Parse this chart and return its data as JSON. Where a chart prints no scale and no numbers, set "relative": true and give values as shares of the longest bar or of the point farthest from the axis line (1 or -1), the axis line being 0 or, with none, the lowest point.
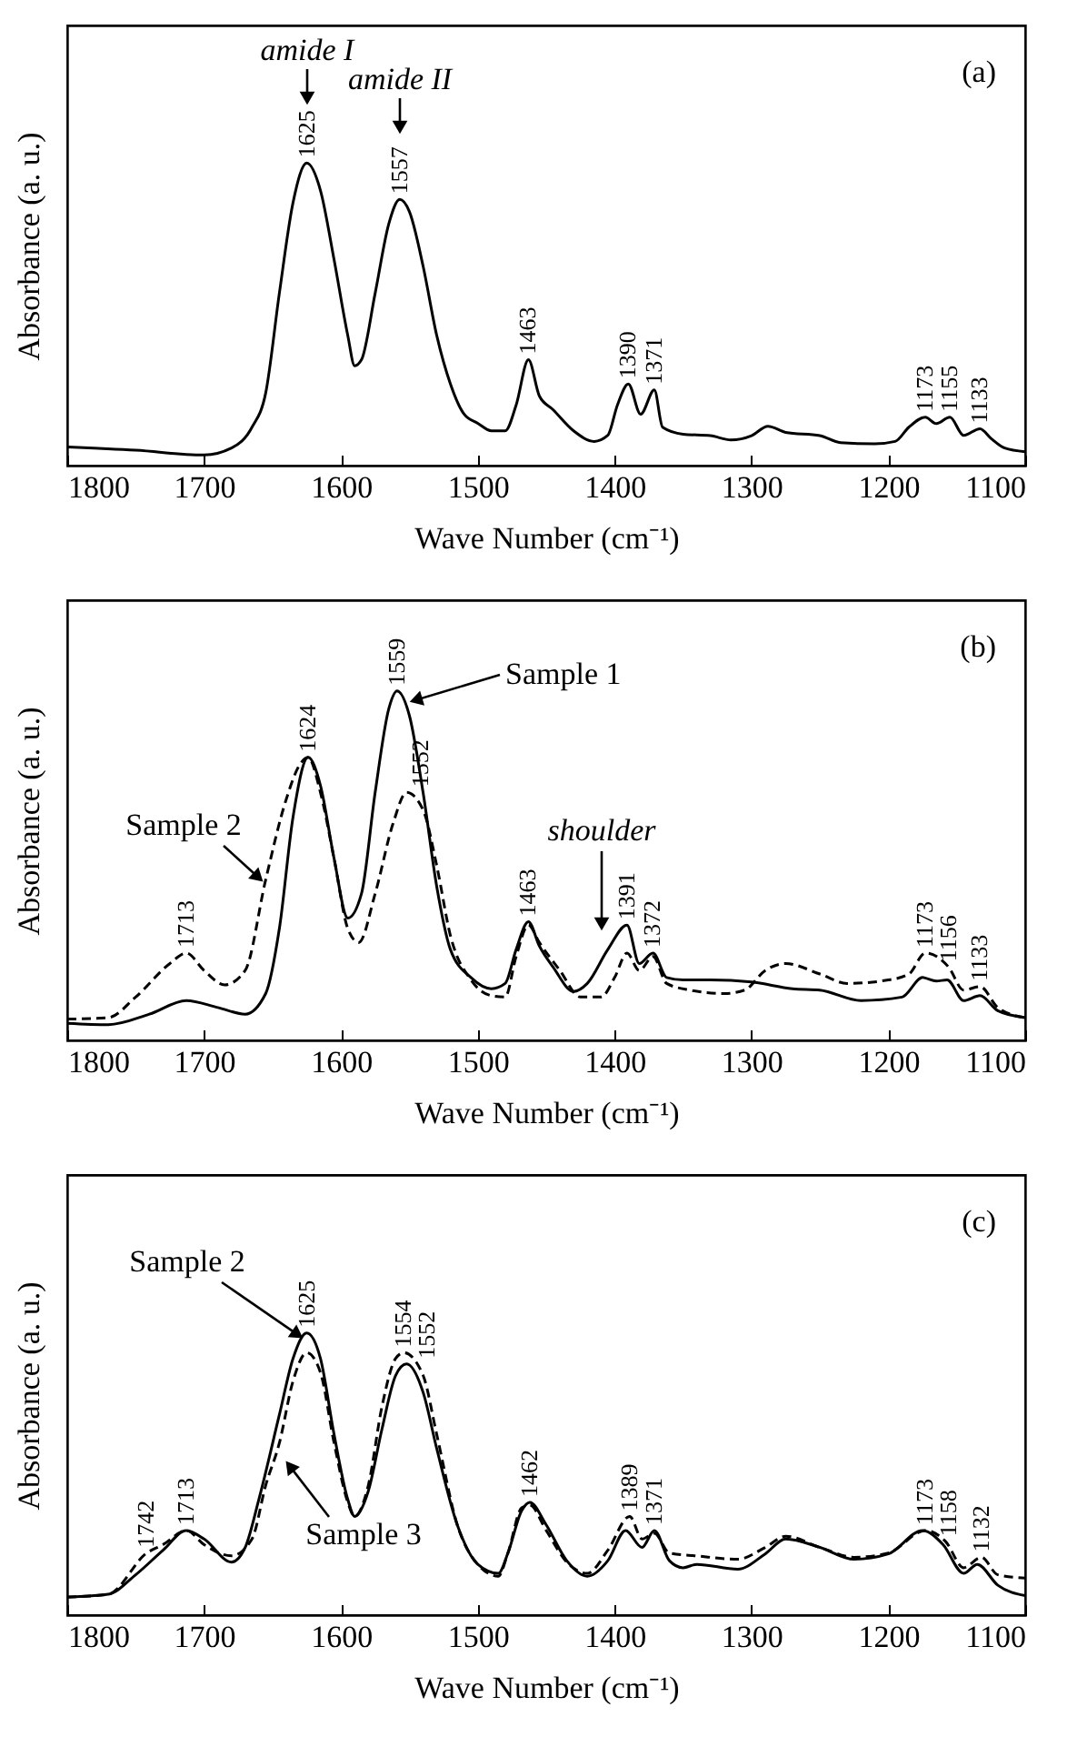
{
  "chart_data": [
    {
      "type": "line",
      "relative": true,
      "xlabel": "Wave Number (cm⁻¹)",
      "ylabel": "Absorbance (a. u.)",
      "xlim": [
        1800,
        1100
      ],
      "xticks": [
        1800,
        1700,
        1600,
        1500,
        1400,
        1300,
        1200,
        1100
      ],
      "annotations": [
        "(a)",
        "amide I",
        "amide II",
        {
          "text": "1625",
          "x": 1625,
          "y": 1
        },
        {
          "text": "1557",
          "x": 1557,
          "y": 0.88
        },
        {
          "text": "1463",
          "x": 1463,
          "y": 0.35
        },
        {
          "text": "1390",
          "x": 1390,
          "y": 0.27
        },
        {
          "text": "1371",
          "x": 1371,
          "y": 0.25
        },
        {
          "text": "1173",
          "x": 1173,
          "y": 0.16
        },
        {
          "text": "1155",
          "x": 1155,
          "y": 0.16
        },
        {
          "text": "1133",
          "x": 1133,
          "y": 0.122
        }
      ],
      "series": [
        {
          "color": "#000000",
          "line_style": "solid",
          "x": [
            1800,
            1750,
            1700,
            1680,
            1665,
            1655,
            1645,
            1635,
            1625,
            1615,
            1605,
            1595,
            1590,
            1585,
            1575,
            1565,
            1557,
            1550,
            1540,
            1530,
            1520,
            1510,
            1500,
            1490,
            1480,
            1472,
            1463,
            1455,
            1445,
            1430,
            1415,
            1405,
            1398,
            1390,
            1381,
            1371,
            1365,
            1350,
            1330,
            1315,
            1300,
            1288,
            1275,
            1250,
            1235,
            1210,
            1195,
            1185,
            1173,
            1165,
            1155,
            1145,
            1133,
            1125,
            1115,
            1100
          ],
          "values": [
            0.062,
            0.051,
            0.035,
            0.058,
            0.127,
            0.24,
            0.57,
            0.87,
            1,
            0.91,
            0.68,
            0.43,
            0.33,
            0.35,
            0.57,
            0.8,
            0.88,
            0.84,
            0.66,
            0.43,
            0.27,
            0.17,
            0.14,
            0.115,
            0.115,
            0.2,
            0.35,
            0.23,
            0.185,
            0.115,
            0.08,
            0.1,
            0.2,
            0.27,
            0.17,
            0.25,
            0.127,
            0.104,
            0.099,
            0.085,
            0.099,
            0.13,
            0.11,
            0.099,
            0.076,
            0.072,
            0.08,
            0.127,
            0.16,
            0.139,
            0.16,
            0.1,
            0.122,
            0.09,
            0.058,
            0.046
          ]
        }
      ]
    },
    {
      "type": "line",
      "relative": true,
      "xlabel": "Wave Number (cm⁻¹)",
      "ylabel": "Absorbance (a. u.)",
      "xlim": [
        1800,
        1100
      ],
      "xticks": [
        1800,
        1700,
        1600,
        1500,
        1400,
        1300,
        1200,
        1100
      ],
      "annotations": [
        "(b)",
        "Sample 1",
        "Sample 2",
        "shoulder",
        {
          "text": "1713",
          "x": 1713,
          "y": 0.25
        },
        {
          "text": "1624",
          "x": 1624,
          "y": 0.81
        },
        {
          "text": "1559",
          "x": 1559,
          "y": 1
        },
        {
          "text": "1552",
          "x": 1552,
          "y": 0.71
        },
        {
          "text": "1463",
          "x": 1463,
          "y": 0.34
        },
        {
          "text": "1391",
          "x": 1391,
          "y": 0.33
        },
        {
          "text": "1372",
          "x": 1372,
          "y": 0.25
        },
        {
          "text": "1173",
          "x": 1173,
          "y": 0.25
        },
        {
          "text": "1156",
          "x": 1156,
          "y": 0.21
        },
        {
          "text": "1133",
          "x": 1133,
          "y": 0.154
        }
      ],
      "series": [
        {
          "color": "#000000",
          "line_style": "solid",
          "x": [
            1800,
            1770,
            1740,
            1713,
            1690,
            1670,
            1655,
            1645,
            1635,
            1624,
            1615,
            1605,
            1595,
            1585,
            1575,
            1565,
            1559,
            1550,
            1540,
            1530,
            1520,
            1505,
            1490,
            1480,
            1472,
            1463,
            1455,
            1445,
            1430,
            1420,
            1405,
            1391,
            1382,
            1372,
            1362,
            1350,
            1330,
            1300,
            1270,
            1250,
            1220,
            1190,
            1175,
            1165,
            1157,
            1145,
            1133,
            1120,
            1100
          ],
          "values": [
            0.049,
            0.045,
            0.075,
            0.114,
            0.094,
            0.075,
            0.134,
            0.32,
            0.64,
            0.81,
            0.73,
            0.52,
            0.35,
            0.42,
            0.71,
            0.95,
            1,
            0.93,
            0.71,
            0.44,
            0.26,
            0.18,
            0.148,
            0.163,
            0.26,
            0.34,
            0.27,
            0.21,
            0.14,
            0.163,
            0.26,
            0.33,
            0.22,
            0.25,
            0.18,
            0.173,
            0.173,
            0.167,
            0.148,
            0.144,
            0.114,
            0.124,
            0.18,
            0.17,
            0.173,
            0.114,
            0.128,
            0.085,
            0.065
          ]
        },
        {
          "color": "#000000",
          "line_style": "dashed",
          "x": [
            1800,
            1770,
            1750,
            1725,
            1713,
            1700,
            1685,
            1670,
            1655,
            1640,
            1630,
            1624,
            1615,
            1605,
            1595,
            1587,
            1575,
            1562,
            1552,
            1540,
            1530,
            1520,
            1505,
            1490,
            1480,
            1472,
            1463,
            1455,
            1440,
            1425,
            1410,
            1400,
            1391,
            1382,
            1372,
            1362,
            1345,
            1320,
            1305,
            1290,
            1275,
            1250,
            1230,
            1200,
            1185,
            1173,
            1156,
            1145,
            1133,
            1120,
            1100
          ],
          "values": [
            0.061,
            0.065,
            0.124,
            0.22,
            0.25,
            0.2,
            0.159,
            0.2,
            0.46,
            0.69,
            0.79,
            0.81,
            0.71,
            0.52,
            0.32,
            0.28,
            0.42,
            0.62,
            0.71,
            0.66,
            0.5,
            0.3,
            0.173,
            0.128,
            0.124,
            0.24,
            0.33,
            0.28,
            0.2,
            0.124,
            0.124,
            0.18,
            0.25,
            0.2,
            0.24,
            0.163,
            0.144,
            0.134,
            0.144,
            0.2,
            0.22,
            0.19,
            0.163,
            0.173,
            0.19,
            0.25,
            0.21,
            0.144,
            0.154,
            0.094,
            0.065
          ]
        }
      ]
    },
    {
      "type": "line",
      "relative": true,
      "xlabel": "Wave Number (cm⁻¹)",
      "ylabel": "Absorbance (a. u.)",
      "xlim": [
        1800,
        1100
      ],
      "xticks": [
        1800,
        1700,
        1600,
        1500,
        1400,
        1300,
        1200,
        1100
      ],
      "annotations": [
        "(c)",
        "Sample 2",
        "Sample 3",
        {
          "text": "1742",
          "x": 1742,
          "y": 0.22
        },
        {
          "text": "1713",
          "x": 1713,
          "y": 0.3
        },
        {
          "text": "1625",
          "x": 1625,
          "y": 1
        },
        {
          "text": "1554",
          "x": 1554,
          "y": 0.93
        },
        {
          "text": "1552",
          "x": 1552,
          "y": 0.89
        },
        {
          "text": "1462",
          "x": 1462,
          "y": 0.4
        },
        {
          "text": "1389",
          "x": 1389,
          "y": 0.35
        },
        {
          "text": "1371",
          "x": 1371,
          "y": 0.3
        },
        {
          "text": "1173",
          "x": 1173,
          "y": 0.3
        },
        {
          "text": "1158",
          "x": 1158,
          "y": 0.26
        },
        {
          "text": "1132",
          "x": 1132,
          "y": 0.205
        }
      ],
      "series": [
        {
          "color": "#000000",
          "line_style": "solid",
          "x": [
            1800,
            1770,
            1750,
            1730,
            1713,
            1700,
            1680,
            1670,
            1660,
            1645,
            1635,
            1625,
            1615,
            1605,
            1595,
            1590,
            1580,
            1570,
            1560,
            1552,
            1540,
            1530,
            1515,
            1500,
            1485,
            1478,
            1468,
            1462,
            1450,
            1435,
            1420,
            1405,
            1392,
            1380,
            1371,
            1360,
            1350,
            1340,
            1310,
            1290,
            1275,
            1250,
            1225,
            1200,
            1175,
            1160,
            1145,
            1135,
            1120,
            1100
          ],
          "values": [
            0.064,
            0.074,
            0.143,
            0.23,
            0.3,
            0.27,
            0.188,
            0.24,
            0.41,
            0.71,
            0.91,
            1,
            0.91,
            0.64,
            0.41,
            0.35,
            0.44,
            0.66,
            0.85,
            0.89,
            0.79,
            0.59,
            0.32,
            0.18,
            0.148,
            0.22,
            0.37,
            0.4,
            0.32,
            0.193,
            0.138,
            0.193,
            0.3,
            0.24,
            0.3,
            0.193,
            0.168,
            0.18,
            0.163,
            0.217,
            0.27,
            0.24,
            0.198,
            0.217,
            0.3,
            0.25,
            0.148,
            0.18,
            0.106,
            0.069
          ]
        },
        {
          "color": "#000000",
          "line_style": "dashed",
          "x": [
            1800,
            1770,
            1742,
            1730,
            1713,
            1700,
            1680,
            1665,
            1655,
            1645,
            1635,
            1625,
            1615,
            1605,
            1595,
            1590,
            1580,
            1570,
            1560,
            1554,
            1540,
            1530,
            1515,
            1500,
            1485,
            1478,
            1468,
            1462,
            1450,
            1435,
            1420,
            1405,
            1389,
            1380,
            1371,
            1360,
            1340,
            1310,
            1290,
            1275,
            1250,
            1225,
            1200,
            1173,
            1158,
            1145,
            1132,
            1120,
            1100
          ],
          "values": [
            0.064,
            0.074,
            0.22,
            0.25,
            0.3,
            0.25,
            0.21,
            0.27,
            0.46,
            0.61,
            0.83,
            0.93,
            0.86,
            0.61,
            0.4,
            0.35,
            0.46,
            0.74,
            0.91,
            0.93,
            0.85,
            0.64,
            0.32,
            0.18,
            0.138,
            0.22,
            0.38,
            0.39,
            0.3,
            0.188,
            0.148,
            0.23,
            0.35,
            0.27,
            0.29,
            0.22,
            0.21,
            0.198,
            0.24,
            0.28,
            0.24,
            0.205,
            0.22,
            0.3,
            0.26,
            0.168,
            0.205,
            0.143,
            0.131
          ]
        }
      ]
    }
  ]
}
